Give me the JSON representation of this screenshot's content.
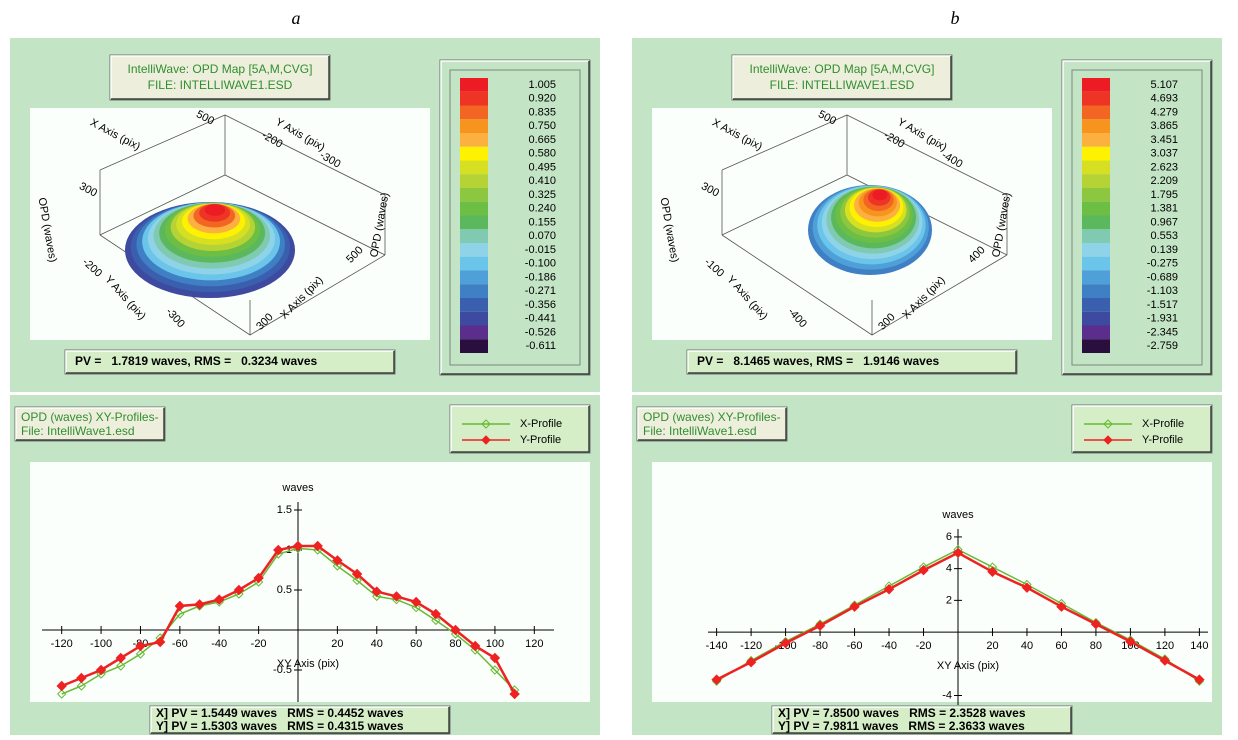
{
  "labels": [
    "a",
    "b"
  ],
  "panels": [
    {
      "map": {
        "title": "IntelliWave: OPD Map [5A,M,CVG]",
        "file": "FILE: INTELLIWAVE1.ESD",
        "axis_texts": [
          "X Axis (pix)",
          "300",
          "500",
          "Y Axis (pix)",
          "-200",
          "-300",
          "OPD (waves)",
          "OPD (waves)",
          "-200",
          "Y Axis (pix)",
          "-300",
          "300",
          "X Axis (pix)",
          "500"
        ],
        "colorbar": {
          "labels": [
            "1.005",
            "0.920",
            "0.835",
            "0.750",
            "0.665",
            "0.580",
            "0.495",
            "0.410",
            "0.325",
            "0.240",
            "0.155",
            "0.070",
            "-0.015",
            "-0.100",
            "-0.186",
            "-0.271",
            "-0.356",
            "-0.441",
            "-0.526",
            "-0.611"
          ],
          "colors": [
            "#ed1c24",
            "#ee3424",
            "#f26522",
            "#f7941d",
            "#fbb040",
            "#fff200",
            "#d7df23",
            "#b5d334",
            "#8dc63f",
            "#6dbe45",
            "#5cb85c",
            "#7fcab0",
            "#8fd3e8",
            "#6bc5ea",
            "#4f9fd8",
            "#3f7fc4",
            "#3a5fae",
            "#3d4aa0",
            "#5b2d8c",
            "#2a0e3e"
          ]
        },
        "stats": "PV =   1.7819 waves, RMS =   0.3234 waves"
      },
      "profile": {
        "title": "OPD (waves) XY-Profiles-",
        "file": "File: IntelliWave1.esd",
        "stats": [
          "X] PV = 1.5449 waves   RMS = 0.4452 waves",
          "Y] PV = 1.5303 waves   RMS = 0.4315 waves"
        ],
        "chart": {
          "type": "line",
          "ylabel": "waves",
          "xlabel": "XY Axis (pix)",
          "xlim": [
            -130,
            130
          ],
          "ylim": [
            -0.9,
            1.6
          ],
          "xticks": [
            -120,
            -100,
            -80,
            -60,
            -40,
            -20,
            20,
            40,
            60,
            80,
            100,
            120
          ],
          "yticks": [
            -0.5,
            0.5,
            1,
            1.5
          ],
          "x": [
            -120,
            -110,
            -100,
            -90,
            -80,
            -70,
            -60,
            -50,
            -40,
            -30,
            -20,
            -10,
            0,
            10,
            20,
            30,
            40,
            50,
            60,
            70,
            80,
            90,
            100,
            110
          ],
          "series": [
            {
              "name": "X-Profile",
              "color": "#66bb33",
              "values": [
                -0.8,
                -0.7,
                -0.55,
                -0.45,
                -0.3,
                -0.1,
                0.2,
                0.3,
                0.35,
                0.45,
                0.6,
                0.95,
                1.02,
                1.0,
                0.8,
                0.62,
                0.42,
                0.38,
                0.28,
                0.12,
                -0.05,
                -0.25,
                -0.5,
                -0.75
              ]
            },
            {
              "name": "Y-Profile",
              "color": "#ee2222",
              "values": [
                -0.7,
                -0.6,
                -0.5,
                -0.35,
                -0.2,
                -0.15,
                0.3,
                0.32,
                0.38,
                0.5,
                0.65,
                1.0,
                1.05,
                1.05,
                0.87,
                0.7,
                0.48,
                0.42,
                0.35,
                0.2,
                0.0,
                -0.2,
                -0.35,
                -0.8
              ]
            }
          ]
        }
      }
    },
    {
      "map": {
        "title": "IntelliWave: OPD Map [5A,M,CVG]",
        "file": "FILE: INTELLIWAVE1.ESD",
        "axis_texts": [
          "X Axis (pix)",
          "300",
          "500",
          "Y Axis (pix)",
          "-200",
          "-400",
          "OPD (waves)",
          "OPD (waves)",
          "-100",
          "Y Axis (pix)",
          "-400",
          "300",
          "X Axis (pix)",
          "400"
        ],
        "colorbar": {
          "labels": [
            "5.107",
            "4.693",
            "4.279",
            "3.865",
            "3.451",
            "3.037",
            "2.623",
            "2.209",
            "1.795",
            "1.381",
            "0.967",
            "0.553",
            "0.139",
            "-0.275",
            "-0.689",
            "-1.103",
            "-1.517",
            "-1.931",
            "-2.345",
            "-2.759"
          ],
          "colors": [
            "#ed1c24",
            "#ee3424",
            "#f26522",
            "#f7941d",
            "#fbb040",
            "#fff200",
            "#d7df23",
            "#b5d334",
            "#8dc63f",
            "#6dbe45",
            "#5cb85c",
            "#7fcab0",
            "#8fd3e8",
            "#6bc5ea",
            "#4f9fd8",
            "#3f7fc4",
            "#3a5fae",
            "#3d4aa0",
            "#5b2d8c",
            "#2a0e3e"
          ]
        },
        "stats": "PV =   8.1465 waves, RMS =   1.9146 waves"
      },
      "profile": {
        "title": "OPD (waves) XY-Profiles-",
        "file": "File: IntelliWave1.esd",
        "stats": [
          "X] PV = 7.8500 waves   RMS = 2.3528 waves",
          "Y] PV = 7.9811 waves   RMS = 2.3633 waves"
        ],
        "chart": {
          "type": "line",
          "ylabel": "waves",
          "xlabel": "XY Axis (pix)",
          "xlim": [
            -145,
            145
          ],
          "ylim": [
            -4.6,
            6.5
          ],
          "xticks": [
            -140,
            -120,
            -100,
            -80,
            -60,
            -40,
            -20,
            20,
            40,
            60,
            80,
            100,
            120,
            140
          ],
          "yticks": [
            -4,
            2,
            4,
            6
          ],
          "x": [
            -140,
            -120,
            -100,
            -80,
            -60,
            -40,
            -20,
            0,
            20,
            40,
            60,
            80,
            100,
            120,
            140
          ],
          "series": [
            {
              "name": "X-Profile",
              "color": "#66bb33",
              "values": [
                -3.1,
                -1.8,
                -0.6,
                0.5,
                1.7,
                2.9,
                4.1,
                5.2,
                4.1,
                3.0,
                1.8,
                0.6,
                -0.5,
                -1.7,
                -3.1
              ]
            },
            {
              "name": "Y-Profile",
              "color": "#ee2222",
              "values": [
                -3.0,
                -1.9,
                -0.7,
                0.4,
                1.6,
                2.7,
                3.9,
                5.0,
                3.8,
                2.8,
                1.6,
                0.5,
                -0.6,
                -1.8,
                -3.0
              ]
            }
          ]
        }
      }
    }
  ]
}
